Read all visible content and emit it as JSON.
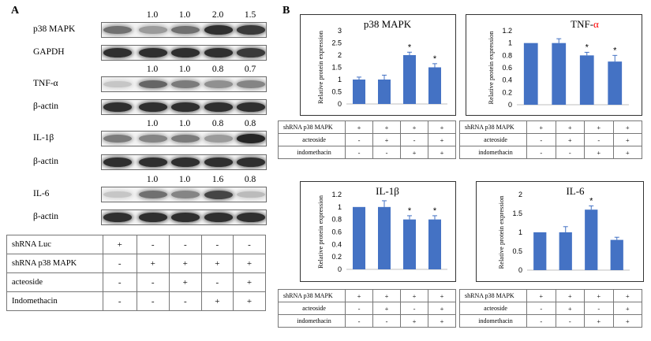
{
  "panel_a": {
    "letter": "A",
    "blots": [
      {
        "label": "p38 MAPK",
        "values": [
          "",
          "1.0",
          "1.0",
          "2.0",
          "1.5"
        ],
        "intensity": [
          0.55,
          0.35,
          0.55,
          0.85,
          0.8
        ]
      },
      {
        "label": "GAPDH",
        "values": [],
        "intensity": [
          0.85,
          0.85,
          0.85,
          0.85,
          0.8
        ]
      },
      {
        "label": "TNF-α",
        "values": [
          "",
          "1.0",
          "1.0",
          "0.8",
          "0.7"
        ],
        "intensity": [
          0.15,
          0.6,
          0.5,
          0.4,
          0.45
        ]
      },
      {
        "label": "β-actin",
        "values": [],
        "intensity": [
          0.85,
          0.85,
          0.85,
          0.85,
          0.85
        ]
      },
      {
        "label": "IL-1β",
        "values": [
          "",
          "1.0",
          "1.0",
          "0.8",
          "0.8"
        ],
        "intensity": [
          0.5,
          0.45,
          0.5,
          0.35,
          0.9
        ]
      },
      {
        "label": "β-actin",
        "values": [],
        "intensity": [
          0.85,
          0.85,
          0.85,
          0.85,
          0.85
        ]
      },
      {
        "label": "IL-6",
        "values": [
          "",
          "1.0",
          "1.0",
          "1.6",
          "0.8"
        ],
        "intensity": [
          0.15,
          0.55,
          0.45,
          0.75,
          0.2
        ]
      },
      {
        "label": "β-actin",
        "values": [],
        "intensity": [
          0.85,
          0.85,
          0.85,
          0.85,
          0.85
        ]
      }
    ],
    "table": {
      "rows": [
        {
          "label": "shRNA Luc",
          "cells": [
            "+",
            "-",
            "-",
            "-",
            "-"
          ]
        },
        {
          "label": "shRNA p38 MAPK",
          "cells": [
            "-",
            "+",
            "+",
            "+",
            "+"
          ]
        },
        {
          "label": "acteoside",
          "cells": [
            "-",
            "-",
            "+",
            "-",
            "+"
          ]
        },
        {
          "label": "Indomethacin",
          "cells": [
            "-",
            "-",
            "-",
            "+",
            "+"
          ]
        }
      ]
    }
  },
  "panel_b": {
    "letter": "B",
    "bar_color": "#4472c4",
    "title_accent_color": "#ff0000",
    "table_rows": [
      {
        "label": "shRNA p38 MAPK",
        "cells": [
          "+",
          "+",
          "+",
          "+"
        ]
      },
      {
        "label": "acteoside",
        "cells": [
          "-",
          "+",
          "-",
          "+"
        ]
      },
      {
        "label": "indomethacin",
        "cells": [
          "-",
          "-",
          "+",
          "+"
        ]
      }
    ]
  },
  "chart_data": [
    {
      "type": "bar",
      "title": "p38 MAPK",
      "title_main": "p38 MAPK",
      "title_accent": "",
      "ylabel": "Relative protein expression",
      "ylim": [
        0,
        3
      ],
      "yticks": [
        "0",
        "0.5",
        "1",
        "1.5",
        "2",
        "2.5",
        "3"
      ],
      "values": [
        1.0,
        1.0,
        2.0,
        1.5
      ],
      "errors": [
        0.1,
        0.18,
        0.12,
        0.15
      ],
      "significance": [
        "",
        "",
        "*",
        "*"
      ]
    },
    {
      "type": "bar",
      "title": "TNF-α",
      "title_main": "TNF-",
      "title_accent": "α",
      "ylabel": "Relative protein expression",
      "ylim": [
        0,
        1.2
      ],
      "yticks": [
        "0",
        "0.2",
        "0.4",
        "0.6",
        "0.8",
        "1",
        "1.2"
      ],
      "values": [
        1.0,
        1.0,
        0.8,
        0.7
      ],
      "errors": [
        0.0,
        0.07,
        0.05,
        0.1
      ],
      "significance": [
        "",
        "",
        "*",
        "*"
      ]
    },
    {
      "type": "bar",
      "title": "IL-1β",
      "title_main": "IL-1β",
      "title_accent": "",
      "ylabel": "Relative protein expression",
      "ylim": [
        0,
        1.2
      ],
      "yticks": [
        "0",
        "0.2",
        "0.4",
        "0.6",
        "0.8",
        "1",
        "1.2"
      ],
      "values": [
        1.0,
        1.0,
        0.8,
        0.8
      ],
      "errors": [
        0.0,
        0.1,
        0.06,
        0.06
      ],
      "significance": [
        "",
        "",
        "*",
        "*"
      ]
    },
    {
      "type": "bar",
      "title": "IL-6",
      "title_main": "IL-6",
      "title_accent": "",
      "ylabel": "Relative protein expression",
      "ylim": [
        0,
        2
      ],
      "yticks": [
        "0",
        "0.5",
        "1",
        "1.5",
        "2"
      ],
      "values": [
        1.0,
        1.0,
        1.6,
        0.8
      ],
      "errors": [
        0.0,
        0.15,
        0.1,
        0.07
      ],
      "significance": [
        "",
        "",
        "*",
        ""
      ]
    }
  ]
}
